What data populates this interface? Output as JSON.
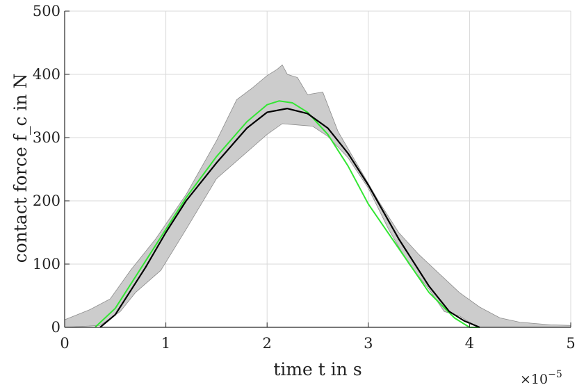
{
  "chart_data": {
    "type": "line",
    "title": "",
    "xlabel": "time t in s",
    "ylabel": "contact force f_c in N",
    "x_exponent_label": "×10",
    "x_exponent_power": "−5",
    "xlim": [
      0,
      5
    ],
    "ylim": [
      0,
      500
    ],
    "xticks": [
      0,
      1,
      2,
      3,
      4,
      5
    ],
    "yticks": [
      0,
      100,
      200,
      300,
      400,
      500
    ],
    "xtick_labels": [
      "0",
      "1",
      "2",
      "3",
      "4",
      "5"
    ],
    "ytick_labels": [
      "0",
      "100",
      "200",
      "300",
      "400",
      "500"
    ],
    "grid": true,
    "legend": "none",
    "colors": {
      "band_fill": "#cccccc",
      "band_edge": "#8c8c8c",
      "green": "#33e633",
      "black": "#000000"
    },
    "band": {
      "x_upper": [
        0,
        0.25,
        0.45,
        0.65,
        0.9,
        1.2,
        1.5,
        1.7,
        1.85,
        2.0,
        2.1,
        2.15,
        2.2,
        2.3,
        2.4,
        2.55,
        2.7,
        2.9,
        3.1,
        3.3,
        3.5,
        3.7,
        3.9,
        4.1,
        4.3,
        4.5,
        4.8,
        5.0
      ],
      "upper": [
        12,
        28,
        45,
        90,
        140,
        210,
        295,
        360,
        378,
        398,
        408,
        415,
        400,
        395,
        368,
        372,
        310,
        255,
        200,
        150,
        115,
        85,
        55,
        32,
        15,
        8,
        4,
        3
      ],
      "x_lower": [
        0,
        0.35,
        0.55,
        0.7,
        0.95,
        1.2,
        1.5,
        1.75,
        2.0,
        2.15,
        2.3,
        2.45,
        2.6,
        2.8,
        3.0,
        3.2,
        3.4,
        3.6,
        3.75,
        3.9,
        4.0,
        4.1,
        4.3,
        5.0
      ],
      "lower": [
        0,
        3,
        25,
        55,
        90,
        155,
        235,
        270,
        305,
        322,
        320,
        318,
        302,
        268,
        220,
        155,
        100,
        60,
        25,
        18,
        8,
        0,
        0,
        0
      ]
    },
    "series": [
      {
        "x": [
          0.3,
          0.5,
          0.8,
          1.0,
          1.2,
          1.5,
          1.8,
          2.0,
          2.12,
          2.25,
          2.4,
          2.6,
          2.8,
          3.0,
          3.3,
          3.6,
          3.85,
          4.0,
          4.1
        ],
        "y": [
          0,
          30,
          105,
          155,
          205,
          270,
          325,
          352,
          358,
          355,
          340,
          305,
          255,
          195,
          125,
          55,
          15,
          0,
          0
        ]
      },
      {
        "x": [
          0.35,
          0.5,
          0.8,
          1.0,
          1.2,
          1.5,
          1.8,
          2.0,
          2.2,
          2.4,
          2.6,
          2.8,
          3.0,
          3.3,
          3.6,
          3.8,
          3.95,
          4.1
        ],
        "y": [
          0,
          20,
          95,
          150,
          200,
          260,
          315,
          340,
          346,
          338,
          315,
          275,
          225,
          140,
          65,
          25,
          10,
          0
        ]
      }
    ]
  }
}
